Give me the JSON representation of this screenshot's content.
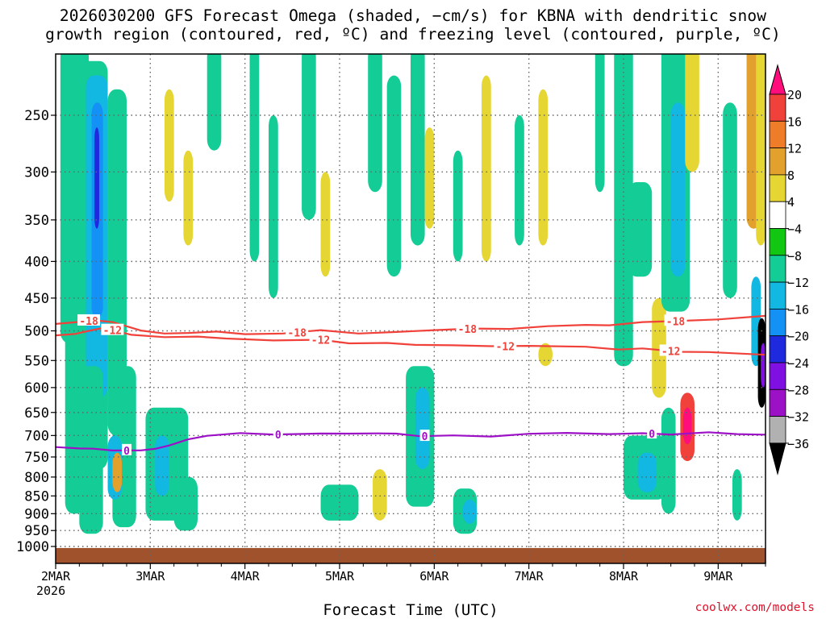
{
  "header": {
    "title_line1": "2026030200 GFS Forecast Omega (shaded, −cm/s) for KBNA with dendritic snow",
    "title_line2": "growth region (contoured, red, ºC) and freezing level (contoured, purple, ºC)"
  },
  "footer": {
    "credit": "coolwx.com/models"
  },
  "colors": {
    "isotherm": "#f0413a",
    "freezing": "#9d11c6",
    "ground": "#a0522d",
    "grid": "#666666"
  },
  "chart_data": {
    "type": "heatmap",
    "title": "2026030200 GFS Forecast Omega (shaded, −cm/s) for KBNA with dendritic snow growth region (contoured, red, ºC) and freezing level (contoured, purple, ºC)",
    "xlabel": "Forecast Time (UTC)",
    "ylabel": "",
    "x_tick_labels": [
      "2MAR",
      "3MAR",
      "4MAR",
      "5MAR",
      "6MAR",
      "7MAR",
      "8MAR",
      "9MAR"
    ],
    "x_year_label": "2026",
    "xlim_days": [
      0,
      7.5
    ],
    "ylim_hpa": [
      1025,
      200
    ],
    "y_axis_log": true,
    "y_ticks": [
      250,
      300,
      350,
      400,
      450,
      500,
      550,
      600,
      650,
      700,
      750,
      800,
      850,
      900,
      950,
      1000
    ],
    "grid": true,
    "colorbar": {
      "labels": [
        "20",
        "16",
        "12",
        "8",
        "4",
        "−4",
        "−8",
        "−12",
        "−16",
        "−20",
        "−24",
        "−28",
        "−32",
        "−36"
      ],
      "values": [
        20,
        16,
        12,
        8,
        4,
        -4,
        -8,
        -12,
        -16,
        -20,
        -24,
        -28,
        -32,
        -36
      ],
      "colors": [
        "#ff0d7d",
        "#f0413a",
        "#ee7c28",
        "#e2a12c",
        "#e5d633",
        "#ffffff",
        "#11c711",
        "#14cc96",
        "#12b7e2",
        "#1491f4",
        "#1f2adf",
        "#800fe2",
        "#9d11c6",
        "#b1b1b1",
        "#000000"
      ]
    },
    "contours": [
      {
        "name": "-18C isotherm",
        "value": -18,
        "color": "#f0413a",
        "points": [
          [
            0.0,
            0.3
          ],
          [
            0.2,
            -0.5
          ],
          [
            0.4,
            -1.5
          ],
          [
            0.6,
            -0.6
          ],
          [
            0.9,
            3.6
          ],
          [
            1.15,
            5.1
          ],
          [
            1.4,
            4.8
          ],
          [
            1.7,
            4.1
          ],
          [
            2.0,
            5.4
          ],
          [
            2.4,
            5.1
          ],
          [
            2.8,
            3.4
          ],
          [
            3.2,
            5.1
          ],
          [
            3.6,
            4.3
          ],
          [
            4.0,
            3.4
          ],
          [
            4.4,
            2.6
          ],
          [
            4.8,
            2.8
          ],
          [
            5.2,
            1.4
          ],
          [
            5.6,
            0.8
          ],
          [
            5.85,
            1.0
          ],
          [
            6.2,
            -0.6
          ],
          [
            6.6,
            -1.2
          ],
          [
            7.0,
            -1.9
          ],
          [
            7.5,
            -3.6
          ]
        ],
        "labels": [
          {
            "x": 0.35,
            "text": "-18"
          },
          {
            "x": 2.55,
            "text": "-18"
          },
          {
            "x": 4.35,
            "text": "-18"
          },
          {
            "x": 6.55,
            "text": "-18"
          }
        ]
      },
      {
        "name": "-12C isotherm",
        "value": -12,
        "color": "#f0413a",
        "points": [
          [
            0.0,
            -10.2
          ],
          [
            0.2,
            -10.9
          ],
          [
            0.35,
            -12.5
          ],
          [
            0.5,
            -14.0
          ],
          [
            0.8,
            -10.5
          ],
          [
            1.15,
            -9.3
          ],
          [
            1.5,
            -9.6
          ],
          [
            1.8,
            -8.6
          ],
          [
            2.3,
            -7.6
          ],
          [
            2.8,
            -8.0
          ],
          [
            3.1,
            -6.1
          ],
          [
            3.5,
            -6.3
          ],
          [
            3.8,
            -5.3
          ],
          [
            4.2,
            -5.1
          ],
          [
            4.6,
            -4.6
          ],
          [
            5.0,
            -4.8
          ],
          [
            5.6,
            -4.3
          ],
          [
            5.95,
            -2.8
          ],
          [
            6.2,
            -3.4
          ],
          [
            6.6,
            -1.6
          ],
          [
            6.9,
            -1.5
          ],
          [
            7.5,
            0.0
          ]
        ],
        "labels": [
          {
            "x": 0.6,
            "text": "-12"
          },
          {
            "x": 2.8,
            "text": "-12"
          },
          {
            "x": 4.75,
            "text": "-12"
          },
          {
            "x": 6.5,
            "text": "-12"
          }
        ]
      },
      {
        "name": "0C freezing level",
        "value": 0,
        "color": "#9d11c6",
        "points": [
          [
            0.0,
            16.1
          ],
          [
            0.25,
            17.1
          ],
          [
            0.4,
            17.3
          ],
          [
            0.6,
            18.6
          ],
          [
            0.9,
            18.5
          ],
          [
            1.05,
            17.4
          ],
          [
            1.2,
            14.9
          ],
          [
            1.4,
            10.5
          ],
          [
            1.6,
            8.0
          ],
          [
            1.95,
            6.1
          ],
          [
            2.3,
            7.1
          ],
          [
            2.8,
            6.4
          ],
          [
            3.1,
            6.5
          ],
          [
            3.4,
            6.3
          ],
          [
            3.6,
            6.5
          ],
          [
            3.85,
            8.3
          ],
          [
            4.2,
            7.7
          ],
          [
            4.6,
            8.5
          ],
          [
            5.0,
            6.6
          ],
          [
            5.4,
            6.0
          ],
          [
            5.85,
            6.8
          ],
          [
            6.2,
            6.2
          ],
          [
            6.5,
            7.1
          ],
          [
            6.9,
            5.5
          ],
          [
            7.2,
            6.8
          ],
          [
            7.5,
            7.2
          ]
        ],
        "labels": [
          {
            "x": 0.75,
            "text": "0"
          },
          {
            "x": 2.35,
            "text": "0"
          },
          {
            "x": 3.9,
            "text": "0"
          },
          {
            "x": 6.3,
            "text": "0"
          }
        ]
      }
    ],
    "shaded_regions": [
      {
        "x": [
          0.05,
          0.35
        ],
        "p": [
          200,
          520
        ],
        "value": -8
      },
      {
        "x": [
          0.1,
          0.3
        ],
        "p": [
          400,
          900
        ],
        "value": -8
      },
      {
        "x": [
          0.22,
          0.55
        ],
        "p": [
          210,
          780
        ],
        "value": -8
      },
      {
        "x": [
          0.32,
          0.55
        ],
        "p": [
          220,
          620
        ],
        "value": -12
      },
      {
        "x": [
          0.38,
          0.5
        ],
        "p": [
          240,
          480
        ],
        "value": -16
      },
      {
        "x": [
          0.41,
          0.46
        ],
        "p": [
          260,
          360
        ],
        "value": -20
      },
      {
        "x": [
          0.55,
          0.75
        ],
        "p": [
          230,
          700
        ],
        "value": -8
      },
      {
        "x": [
          0.25,
          0.5
        ],
        "p": [
          560,
          960
        ],
        "value": -8
      },
      {
        "x": [
          0.6,
          0.85
        ],
        "p": [
          560,
          940
        ],
        "value": -8
      },
      {
        "x": [
          0.55,
          0.7
        ],
        "p": [
          700,
          860
        ],
        "value": -12
      },
      {
        "x": [
          0.6,
          0.7
        ],
        "p": [
          740,
          840
        ],
        "value": 8
      },
      {
        "x": [
          0.95,
          1.4
        ],
        "p": [
          640,
          920
        ],
        "value": -8
      },
      {
        "x": [
          1.05,
          1.2
        ],
        "p": [
          700,
          850
        ],
        "value": -12
      },
      {
        "x": [
          1.25,
          1.5
        ],
        "p": [
          800,
          950
        ],
        "value": -8
      },
      {
        "x": [
          1.15,
          1.25
        ],
        "p": [
          230,
          330
        ],
        "value": 4
      },
      {
        "x": [
          1.35,
          1.45
        ],
        "p": [
          280,
          380
        ],
        "value": 4
      },
      {
        "x": [
          1.6,
          1.75
        ],
        "p": [
          200,
          280
        ],
        "value": -8
      },
      {
        "x": [
          2.05,
          2.15
        ],
        "p": [
          200,
          400
        ],
        "value": -8
      },
      {
        "x": [
          2.25,
          2.35
        ],
        "p": [
          250,
          450
        ],
        "value": -8
      },
      {
        "x": [
          2.6,
          2.75
        ],
        "p": [
          200,
          350
        ],
        "value": -8
      },
      {
        "x": [
          2.8,
          2.9
        ],
        "p": [
          300,
          420
        ],
        "value": 4
      },
      {
        "x": [
          3.3,
          3.45
        ],
        "p": [
          200,
          320
        ],
        "value": -8
      },
      {
        "x": [
          3.5,
          3.65
        ],
        "p": [
          220,
          420
        ],
        "value": -8
      },
      {
        "x": [
          3.75,
          3.9
        ],
        "p": [
          200,
          380
        ],
        "value": -8
      },
      {
        "x": [
          3.9,
          4.0
        ],
        "p": [
          260,
          360
        ],
        "value": 4
      },
      {
        "x": [
          4.2,
          4.3
        ],
        "p": [
          280,
          400
        ],
        "value": -8
      },
      {
        "x": [
          2.8,
          3.2
        ],
        "p": [
          820,
          920
        ],
        "value": -8
      },
      {
        "x": [
          3.35,
          3.5
        ],
        "p": [
          780,
          920
        ],
        "value": 4
      },
      {
        "x": [
          3.7,
          4.0
        ],
        "p": [
          560,
          880
        ],
        "value": -8
      },
      {
        "x": [
          3.8,
          3.95
        ],
        "p": [
          600,
          780
        ],
        "value": -12
      },
      {
        "x": [
          4.2,
          4.45
        ],
        "p": [
          830,
          960
        ],
        "value": -8
      },
      {
        "x": [
          4.3,
          4.45
        ],
        "p": [
          860,
          930
        ],
        "value": -12
      },
      {
        "x": [
          4.5,
          4.6
        ],
        "p": [
          220,
          400
        ],
        "value": 4
      },
      {
        "x": [
          4.85,
          4.95
        ],
        "p": [
          250,
          380
        ],
        "value": -8
      },
      {
        "x": [
          5.1,
          5.2
        ],
        "p": [
          230,
          380
        ],
        "value": 4
      },
      {
        "x": [
          5.1,
          5.25
        ],
        "p": [
          520,
          560
        ],
        "value": 4
      },
      {
        "x": [
          5.7,
          5.8
        ],
        "p": [
          190,
          320
        ],
        "value": -8
      },
      {
        "x": [
          5.9,
          6.1
        ],
        "p": [
          190,
          560
        ],
        "value": -8
      },
      {
        "x": [
          6.05,
          6.3
        ],
        "p": [
          310,
          420
        ],
        "value": -8
      },
      {
        "x": [
          6.3,
          6.45
        ],
        "p": [
          450,
          620
        ],
        "value": 4
      },
      {
        "x": [
          6.0,
          6.45
        ],
        "p": [
          700,
          860
        ],
        "value": -8
      },
      {
        "x": [
          6.15,
          6.35
        ],
        "p": [
          740,
          840
        ],
        "value": -12
      },
      {
        "x": [
          6.4,
          6.7
        ],
        "p": [
          190,
          470
        ],
        "value": -8
      },
      {
        "x": [
          6.5,
          6.65
        ],
        "p": [
          240,
          420
        ],
        "value": -12
      },
      {
        "x": [
          6.65,
          6.8
        ],
        "p": [
          200,
          300
        ],
        "value": 4
      },
      {
        "x": [
          6.6,
          6.75
        ],
        "p": [
          610,
          760
        ],
        "value": 16
      },
      {
        "x": [
          6.63,
          6.72
        ],
        "p": [
          640,
          720
        ],
        "value": 20
      },
      {
        "x": [
          6.4,
          6.55
        ],
        "p": [
          640,
          900
        ],
        "value": -8
      },
      {
        "x": [
          7.05,
          7.2
        ],
        "p": [
          240,
          450
        ],
        "value": -8
      },
      {
        "x": [
          7.15,
          7.25
        ],
        "p": [
          780,
          920
        ],
        "value": -8
      },
      {
        "x": [
          7.3,
          7.45
        ],
        "p": [
          190,
          360
        ],
        "value": 8
      },
      {
        "x": [
          7.4,
          7.5
        ],
        "p": [
          200,
          380
        ],
        "value": 4
      },
      {
        "x": [
          7.35,
          7.45
        ],
        "p": [
          420,
          560
        ],
        "value": -12
      },
      {
        "x": [
          7.42,
          7.5
        ],
        "p": [
          480,
          640
        ],
        "value": -36
      },
      {
        "x": [
          7.45,
          7.5
        ],
        "p": [
          520,
          600
        ],
        "value": -24
      }
    ],
    "ground_pressure_hpa": 1005
  }
}
